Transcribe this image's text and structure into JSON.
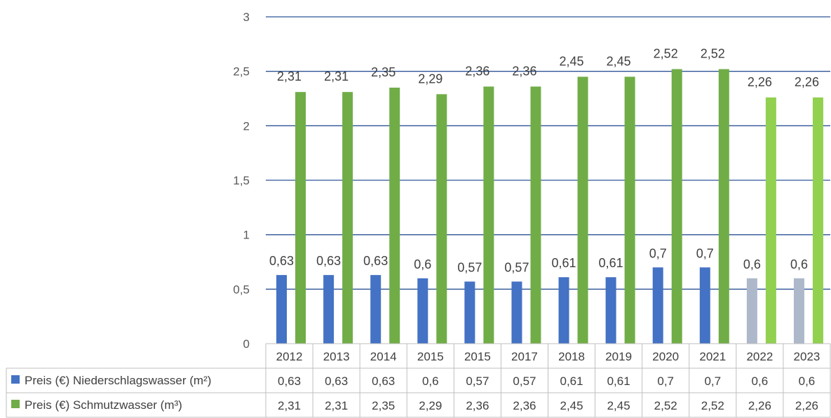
{
  "chart_data": {
    "type": "bar",
    "categories": [
      "2012",
      "2013",
      "2014",
      "2015",
      "2015",
      "2017",
      "2018",
      "2019",
      "2020",
      "2021",
      "2022",
      "2023"
    ],
    "series": [
      {
        "name": "Preis (€) Niederschlagswasser (m²)",
        "values": [
          0.63,
          0.63,
          0.63,
          0.6,
          0.57,
          0.57,
          0.61,
          0.61,
          0.7,
          0.7,
          0.6,
          0.6
        ],
        "labels": [
          "0,63",
          "0,63",
          "0,63",
          "0,6",
          "0,57",
          "0,57",
          "0,61",
          "0,61",
          "0,7",
          "0,7",
          "0,6",
          "0,6"
        ],
        "color": "#4472C4",
        "highlight_color": "#ADB9CA"
      },
      {
        "name": "Preis (€) Schmutzwasser (m³)",
        "values": [
          2.31,
          2.31,
          2.35,
          2.29,
          2.36,
          2.36,
          2.45,
          2.45,
          2.52,
          2.52,
          2.26,
          2.26
        ],
        "labels": [
          "2,31",
          "2,31",
          "2,35",
          "2,29",
          "2,36",
          "2,36",
          "2,45",
          "2,45",
          "2,52",
          "2,52",
          "2,26",
          "2,26"
        ],
        "color": "#70AD47",
        "highlight_color": "#92D050"
      }
    ],
    "highlight_categories": [
      10,
      11
    ],
    "y_ticks": [
      "0",
      "0,5",
      "1",
      "1,5",
      "2",
      "2,5",
      "3"
    ],
    "ylim": [
      0,
      3
    ],
    "grid": true,
    "data_table": true,
    "title": "",
    "xlabel": "",
    "ylabel": ""
  }
}
